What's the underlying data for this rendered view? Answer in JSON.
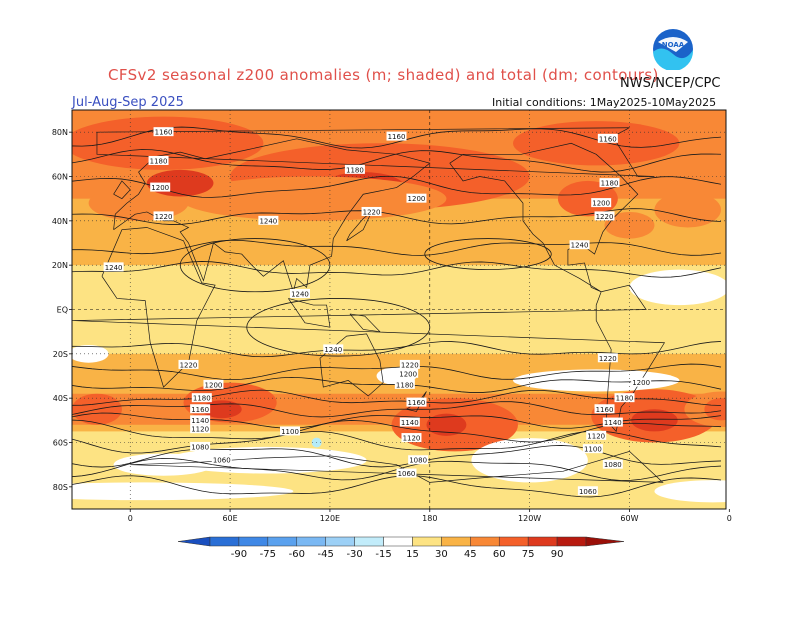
{
  "header": {
    "title": "CFSv2 seasonal z200 anomalies (m; shaded) and total (dm; contours)",
    "org": "NWS/NCEP/CPC",
    "season": "Jul-Aug-Sep 2025",
    "initial_conditions": "Initial conditions: 1May2025-10May2025",
    "logo_text": "NOAA"
  },
  "axes": {
    "lat_labels": [
      "80N",
      "60N",
      "40N",
      "20N",
      "EQ",
      "20S",
      "40S",
      "60S",
      "80S"
    ],
    "lon_labels": [
      "0",
      "60E",
      "120E",
      "180",
      "120W",
      "60W",
      "0"
    ]
  },
  "colors": {
    "w": "#ffffff",
    "y15": "#fde383",
    "y30": "#f9b346",
    "o45": "#f88836",
    "o60": "#f4602a",
    "r75": "#de3a1e",
    "b15": "#b5ebf8",
    "b30": "#8ad0f2"
  },
  "legend": {
    "labels": [
      "-90",
      "-75",
      "-60",
      "-45",
      "-30",
      "-15",
      "15",
      "30",
      "45",
      "60",
      "75",
      "90"
    ],
    "colors": [
      "#2a6fd6",
      "#3f88e6",
      "#5aa1ee",
      "#7ab8f3",
      "#9cd0f6",
      "#c2ecfa",
      "#ffffff",
      "#fde383",
      "#f9b346",
      "#f88836",
      "#f4602a",
      "#de3a1e",
      "#b81a0f"
    ]
  },
  "contour_labels": [
    {
      "text": "1160",
      "lon": 20,
      "lat": 80
    },
    {
      "text": "1160",
      "lon": 160,
      "lat": 78
    },
    {
      "text": "1160",
      "lon": 287,
      "lat": 77
    },
    {
      "text": "1180",
      "lon": 17,
      "lat": 67
    },
    {
      "text": "1180",
      "lon": 135,
      "lat": 63
    },
    {
      "text": "1180",
      "lon": 288,
      "lat": 57
    },
    {
      "text": "1200",
      "lon": 18,
      "lat": 55
    },
    {
      "text": "1200",
      "lon": 172,
      "lat": 50
    },
    {
      "text": "1200",
      "lon": 283,
      "lat": 48
    },
    {
      "text": "1220",
      "lon": 20,
      "lat": 42
    },
    {
      "text": "1220",
      "lon": 145,
      "lat": 44
    },
    {
      "text": "1220",
      "lon": 285,
      "lat": 42
    },
    {
      "text": "1240",
      "lon": 83,
      "lat": 40
    },
    {
      "text": "1240",
      "lon": 270,
      "lat": 29
    },
    {
      "text": "1240",
      "lon": -10,
      "lat": 19
    },
    {
      "text": "1240",
      "lon": 102,
      "lat": 7
    },
    {
      "text": "1240",
      "lon": 122,
      "lat": -18
    },
    {
      "text": "1220",
      "lon": 35,
      "lat": -25
    },
    {
      "text": "1220",
      "lon": 168,
      "lat": -25
    },
    {
      "text": "1220",
      "lon": 287,
      "lat": -22
    },
    {
      "text": "1200",
      "lon": 167,
      "lat": -29
    },
    {
      "text": "1200",
      "lon": 50,
      "lat": -34
    },
    {
      "text": "1200",
      "lon": 307,
      "lat": -33
    },
    {
      "text": "1180",
      "lon": 165,
      "lat": -34
    },
    {
      "text": "1180",
      "lon": 43,
      "lat": -40
    },
    {
      "text": "1180",
      "lon": 297,
      "lat": -40
    },
    {
      "text": "1160",
      "lon": 172,
      "lat": -42
    },
    {
      "text": "1160",
      "lon": 42,
      "lat": -45
    },
    {
      "text": "1160",
      "lon": 285,
      "lat": -45
    },
    {
      "text": "1140",
      "lon": 42,
      "lat": -50
    },
    {
      "text": "1140",
      "lon": 168,
      "lat": -51
    },
    {
      "text": "1140",
      "lon": 290,
      "lat": -51
    },
    {
      "text": "1120",
      "lon": 42,
      "lat": -54
    },
    {
      "text": "1120",
      "lon": 169,
      "lat": -58
    },
    {
      "text": "1120",
      "lon": 280,
      "lat": -57
    },
    {
      "text": "1100",
      "lon": 96,
      "lat": -55
    },
    {
      "text": "1100",
      "lon": 278,
      "lat": -63
    },
    {
      "text": "1080",
      "lon": 42,
      "lat": -62
    },
    {
      "text": "1080",
      "lon": 173,
      "lat": -68
    },
    {
      "text": "1080",
      "lon": 290,
      "lat": -70
    },
    {
      "text": "1060",
      "lon": 55,
      "lat": -68
    },
    {
      "text": "1060",
      "lon": 166,
      "lat": -74
    },
    {
      "text": "1060",
      "lon": 275,
      "lat": -82
    }
  ]
}
